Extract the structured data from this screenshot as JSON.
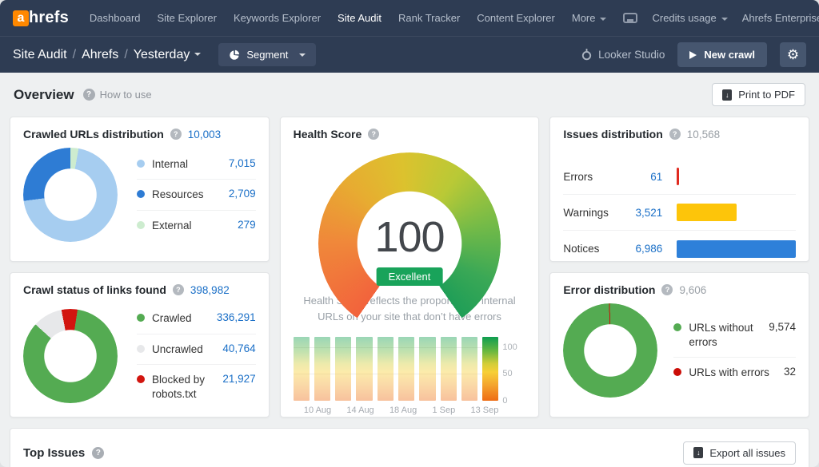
{
  "brand": {
    "logo_accent": "a",
    "logo_rest": "hrefs",
    "orange": "#ff8800"
  },
  "navbar": {
    "items": [
      {
        "label": "Dashboard"
      },
      {
        "label": "Site Explorer"
      },
      {
        "label": "Keywords Explorer"
      },
      {
        "label": "Site Audit",
        "active": true
      },
      {
        "label": "Rank Tracker"
      },
      {
        "label": "Content Explorer"
      }
    ],
    "more_label": "More",
    "credits_label": "Credits usage",
    "enterprise_label": "Ahrefs Enterprise"
  },
  "toolbar": {
    "breadcrumb": {
      "section": "Site Audit",
      "project": "Ahrefs",
      "scope": "Yesterday"
    },
    "sep": "/",
    "segment_label": "Segment",
    "looker_label": "Looker Studio",
    "new_crawl_label": "New crawl"
  },
  "page": {
    "title": "Overview",
    "help_label": "How to use",
    "print_label": "Print to PDF"
  },
  "cards": {
    "crawled_urls": {
      "title": "Crawled URLs distribution",
      "total": "10,003",
      "legend": [
        {
          "label": "Internal",
          "display": "7,015",
          "color": "#a6cdf0"
        },
        {
          "label": "Resources",
          "display": "2,709",
          "color": "#2e7cd4"
        },
        {
          "label": "External",
          "display": "279",
          "color": "#cdeccf"
        }
      ],
      "donut": {
        "from": 0,
        "segments": [
          {
            "name": "External",
            "num": 279,
            "color": "#cdeccf"
          },
          {
            "name": "Internal",
            "num": 7015,
            "color": "#a6cdf0"
          },
          {
            "name": "Resources",
            "num": 2709,
            "color": "#2e7cd4"
          }
        ]
      }
    },
    "crawl_status": {
      "title": "Crawl status of links found",
      "total": "398,982",
      "legend": [
        {
          "label": "Crawled",
          "display": "336,291",
          "color": "#54ab52"
        },
        {
          "label": "Uncrawled",
          "display": "40,764",
          "color": "#e7e8ea"
        },
        {
          "label": "Blocked by robots.txt",
          "display": "21,927",
          "color": "#d2150f"
        }
      ],
      "donut": {
        "from": -11,
        "segments": [
          {
            "name": "Blocked by robots.txt",
            "num": 21927,
            "color": "#d2150f"
          },
          {
            "name": "Crawled",
            "num": 336291,
            "color": "#54ab52"
          },
          {
            "name": "Uncrawled",
            "num": 40764,
            "color": "#e7e8ea"
          }
        ]
      }
    },
    "health_score": {
      "title": "Health Score",
      "score": "100",
      "badge": "Excellent",
      "description": "Health Score reflects the proportion of internal URLs on your site that don’t have errors",
      "history": {
        "values": [
          100,
          100,
          100,
          100,
          100,
          100,
          100,
          100,
          100,
          100
        ],
        "x_labels": [
          "",
          "10 Aug",
          "",
          "14 Aug",
          "",
          "18 Aug",
          "",
          "1 Sep",
          "",
          "13 Sep"
        ],
        "y_ticks": [
          "100",
          "50",
          "0"
        ]
      }
    },
    "issues": {
      "title": "Issues distribution",
      "total": "10,568",
      "rows": [
        {
          "label": "Errors",
          "display": "61",
          "num": 61,
          "color": "#e02b20"
        },
        {
          "label": "Warnings",
          "display": "3,521",
          "num": 3521,
          "color": "#fdc50a"
        },
        {
          "label": "Notices",
          "display": "6,986",
          "num": 6986,
          "color": "#2e80d9"
        }
      ]
    },
    "errors": {
      "title": "Error distribution",
      "total": "9,606",
      "legend": [
        {
          "label": "URLs without errors",
          "display": "9,574",
          "color": "#54ab52"
        },
        {
          "label": "URLs with errors",
          "display": "32",
          "color": "#cb0d07"
        }
      ],
      "donut": {
        "from": -1.5,
        "segments": [
          {
            "name": "URLs with errors",
            "num": 32,
            "color": "#cb0d07"
          },
          {
            "name": "URLs without errors",
            "num": 9574,
            "color": "#54ab52"
          }
        ]
      }
    },
    "top_issues": {
      "title": "Top Issues",
      "export_label": "Export all issues"
    }
  }
}
